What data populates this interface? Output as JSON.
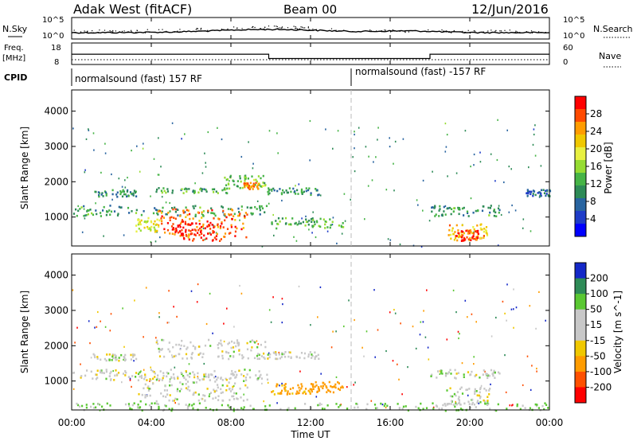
{
  "header": {
    "station": "Adak West (fitACF)",
    "beam": "Beam 00",
    "date": "12/Jun/2016"
  },
  "noise_panel": {
    "left_label": "N.Sky",
    "right_label": "N.Search",
    "tick_top": "10^5",
    "tick_bottom": "10^0"
  },
  "freq_panel": {
    "left_label_1": "Freq.",
    "left_label_2": "[MHz]",
    "right_label": "Nave",
    "left_ticks": [
      "18",
      "8"
    ],
    "right_ticks": [
      "60",
      "0"
    ]
  },
  "cpid_panel": {
    "label": "CPID",
    "mode_1": "normalsound (fast) 157 RF",
    "mode_2": "normalsound (fast) -157 RF"
  },
  "power_panel": {
    "ylabel": "Slant Range [km]",
    "colorbar_label": "Power [dB]",
    "colorbar_ticks": [
      "28",
      "24",
      "20",
      "16",
      "12",
      "8",
      "4"
    ],
    "colorbar_colors": [
      "#ff0000",
      "#ff4a00",
      "#ff9c00",
      "#f0c800",
      "#e8f040",
      "#96dc32",
      "#46b446",
      "#2e8b57",
      "#2864a0",
      "#1e3cc8",
      "#0000ff"
    ]
  },
  "velocity_panel": {
    "ylabel": "Slant Range [km]",
    "colorbar_label": "Velocity [m s^-1]",
    "colorbar_ticks": [
      "200",
      "100",
      "50",
      "15",
      "-15",
      "-50",
      "-100",
      "-200"
    ],
    "colorbar_colors": [
      "#1428c8",
      "#2e8b57",
      "#5ac832",
      "#c8c8c8",
      "#c8c8c8",
      "#f0c800",
      "#ff9c00",
      "#ff5000",
      "#ff0000"
    ]
  },
  "xaxis": {
    "label": "Time UT"
  },
  "chart_data": {
    "type": "heatmap",
    "x_ticks": [
      "00:00",
      "04:00",
      "08:00",
      "12:00",
      "16:00",
      "20:00",
      "00:00"
    ],
    "y_ticks": [
      "1000",
      "2000",
      "3000",
      "4000"
    ],
    "x_range_hours": [
      0,
      24
    ],
    "y_range_km": [
      180,
      4600
    ],
    "cpid_change_hour": 14,
    "frequency_series": {
      "freq_mhz": [
        [
          0,
          13.5
        ],
        [
          9.9,
          13.5
        ],
        [
          9.9,
          10.5
        ],
        [
          18,
          10.5
        ],
        [
          18,
          13.5
        ],
        [
          24,
          13.5
        ]
      ],
      "nave": [
        [
          0,
          10
        ],
        [
          24,
          10
        ]
      ]
    },
    "power_regions": [
      {
        "t0": 0.0,
        "t1": 9.8,
        "r0": 1050,
        "r1": 1350,
        "power_db": 10
      },
      {
        "t0": 4.3,
        "t1": 8.8,
        "r0": 450,
        "r1": 1250,
        "power_db": 26
      },
      {
        "t0": 5.0,
        "t1": 7.5,
        "r0": 350,
        "r1": 900,
        "power_db": 30
      },
      {
        "t0": 3.2,
        "t1": 4.4,
        "r0": 600,
        "r1": 1000,
        "power_db": 18
      },
      {
        "t0": 1.0,
        "t1": 3.2,
        "r0": 1600,
        "r1": 1800,
        "power_db": 9
      },
      {
        "t0": 4.2,
        "t1": 7.8,
        "r0": 1700,
        "r1": 1850,
        "power_db": 11
      },
      {
        "t0": 7.6,
        "t1": 9.7,
        "r0": 1800,
        "r1": 2200,
        "power_db": 13
      },
      {
        "t0": 8.6,
        "t1": 9.4,
        "r0": 1800,
        "r1": 2000,
        "power_db": 24
      },
      {
        "t0": 9.8,
        "t1": 12.4,
        "r0": 1650,
        "r1": 1850,
        "power_db": 9
      },
      {
        "t0": 10.0,
        "t1": 13.6,
        "r0": 700,
        "r1": 1000,
        "power_db": 12
      },
      {
        "t0": 18.0,
        "t1": 21.5,
        "r0": 1050,
        "r1": 1350,
        "power_db": 10
      },
      {
        "t0": 18.8,
        "t1": 20.9,
        "r0": 350,
        "r1": 850,
        "power_db": 22
      },
      {
        "t0": 19.2,
        "t1": 20.4,
        "r0": 350,
        "r1": 650,
        "power_db": 29
      },
      {
        "t0": 22.8,
        "t1": 24.0,
        "r0": 1600,
        "r1": 1800,
        "power_db": 6
      }
    ],
    "velocity_regions": [
      {
        "t0": 0.0,
        "t1": 9.8,
        "r0": 1050,
        "r1": 1350,
        "velocity_ms": 0
      },
      {
        "t0": 3.3,
        "t1": 8.8,
        "r0": 450,
        "r1": 1250,
        "velocity_ms": 0
      },
      {
        "t0": 1.0,
        "t1": 3.2,
        "r0": 1600,
        "r1": 1800,
        "velocity_ms": 0
      },
      {
        "t0": 4.2,
        "t1": 9.7,
        "r0": 1650,
        "r1": 2200,
        "velocity_ms": 0
      },
      {
        "t0": 9.8,
        "t1": 12.4,
        "r0": 1650,
        "r1": 1850,
        "velocity_ms": 0
      },
      {
        "t0": 10.0,
        "t1": 12.0,
        "r0": 650,
        "r1": 950,
        "velocity_ms": -60
      },
      {
        "t0": 12.0,
        "t1": 13.6,
        "r0": 700,
        "r1": 1000,
        "velocity_ms": -80
      },
      {
        "t0": 18.0,
        "t1": 21.5,
        "r0": 1100,
        "r1": 1350,
        "velocity_ms": 0
      },
      {
        "t0": 18.8,
        "t1": 21.0,
        "r0": 350,
        "r1": 850,
        "velocity_ms": 0
      },
      {
        "t0": 0.0,
        "t1": 24.0,
        "r0": 180,
        "r1": 400,
        "velocity_ms": 20
      }
    ]
  }
}
